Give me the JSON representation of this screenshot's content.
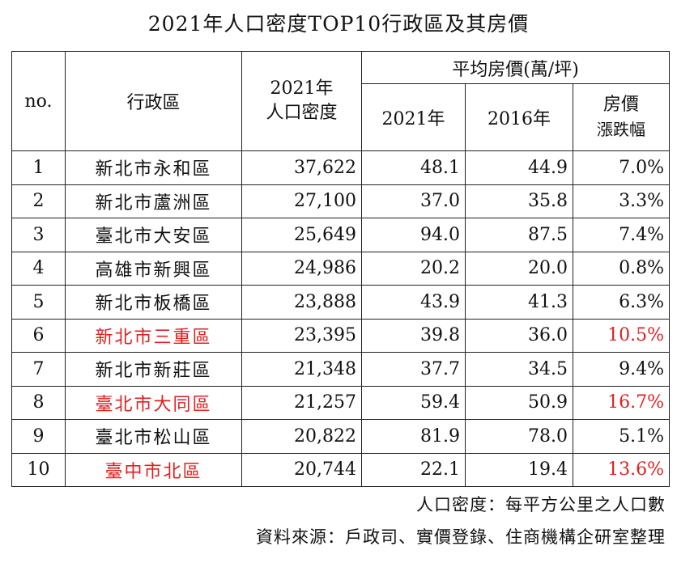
{
  "title": "2021年人口密度TOP10行政區及其房價",
  "headers": {
    "no": "no.",
    "district": "行政區",
    "density_line1": "2021年",
    "density_line2": "人口密度",
    "price_group": "平均房價(萬/坪)",
    "price_2021": "2021年",
    "price_2016": "2016年",
    "change_line1": "房價",
    "change_line2": "漲跌幅"
  },
  "rows": [
    {
      "no": "1",
      "district": "新北市永和區",
      "density": "37,622",
      "p2021": "48.1",
      "p2016": "44.9",
      "change": "7.0%",
      "highlight": false
    },
    {
      "no": "2",
      "district": "新北市蘆洲區",
      "density": "27,100",
      "p2021": "37.0",
      "p2016": "35.8",
      "change": "3.3%",
      "highlight": false
    },
    {
      "no": "3",
      "district": "臺北市大安區",
      "density": "25,649",
      "p2021": "94.0",
      "p2016": "87.5",
      "change": "7.4%",
      "highlight": false
    },
    {
      "no": "4",
      "district": "高雄市新興區",
      "density": "24,986",
      "p2021": "20.2",
      "p2016": "20.0",
      "change": "0.8%",
      "highlight": false
    },
    {
      "no": "5",
      "district": "新北市板橋區",
      "density": "23,888",
      "p2021": "43.9",
      "p2016": "41.3",
      "change": "6.3%",
      "highlight": false
    },
    {
      "no": "6",
      "district": "新北市三重區",
      "density": "23,395",
      "p2021": "39.8",
      "p2016": "36.0",
      "change": "10.5%",
      "highlight": true
    },
    {
      "no": "7",
      "district": "新北市新莊區",
      "density": "21,348",
      "p2021": "37.7",
      "p2016": "34.5",
      "change": "9.4%",
      "highlight": false
    },
    {
      "no": "8",
      "district": "臺北市大同區",
      "density": "21,257",
      "p2021": "59.4",
      "p2016": "50.9",
      "change": "16.7%",
      "highlight": true
    },
    {
      "no": "9",
      "district": "臺北市松山區",
      "density": "20,822",
      "p2021": "81.9",
      "p2016": "78.0",
      "change": "5.1%",
      "highlight": false
    },
    {
      "no": "10",
      "district": "臺中市北區",
      "density": "20,744",
      "p2021": "22.1",
      "p2016": "19.4",
      "change": "13.6%",
      "highlight": true
    }
  ],
  "highlight_color": "#e02020",
  "notes": {
    "density_def": "人口密度：每平方公里之人口數",
    "source": "資料來源：戶政司、實價登錄、住商機構企研室整理"
  }
}
